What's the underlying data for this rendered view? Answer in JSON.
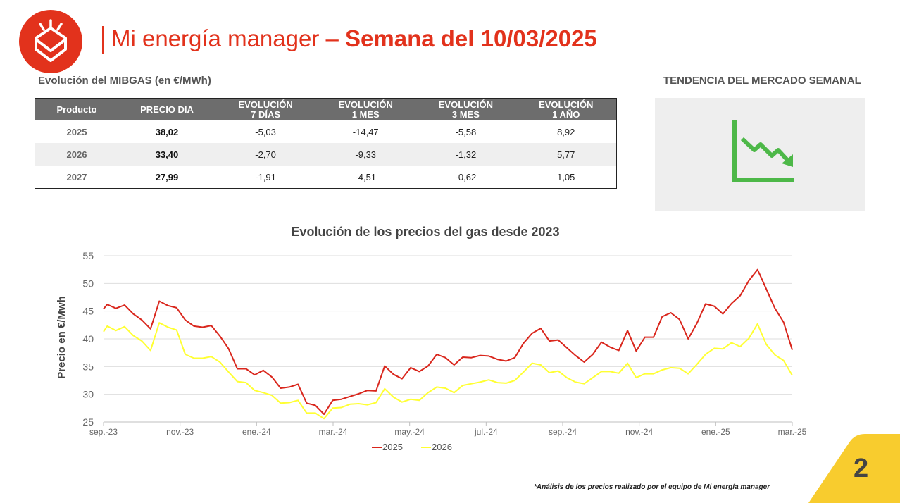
{
  "header": {
    "brand": "Mi energía manager",
    "dash": " – ",
    "week": "Semana del 10/03/2025"
  },
  "colors": {
    "accent": "#e2321c",
    "series2025": "#d9261c",
    "series2026": "#ffff33",
    "trend": "#4db848",
    "corner": "#f8cc2e"
  },
  "table": {
    "caption": "Evolución del MIBGAS (en €/MWh)",
    "headers": [
      {
        "l1": "Producto",
        "l2": ""
      },
      {
        "l1": "PRECIO DIA",
        "l2": ""
      },
      {
        "l1": "EVOLUCIÓN",
        "l2": "7 DÍAS"
      },
      {
        "l1": "EVOLUCIÓN",
        "l2": "1 MES"
      },
      {
        "l1": "EVOLUCIÓN",
        "l2": "3 MES"
      },
      {
        "l1": "EVOLUCIÓN",
        "l2": "1 AÑO"
      }
    ],
    "rows": [
      [
        "2025",
        "38,02",
        "-5,03",
        "-14,47",
        "-5,58",
        "8,92"
      ],
      [
        "2026",
        "33,40",
        "-2,70",
        "-9,33",
        "-1,32",
        "5,77"
      ],
      [
        "2027",
        "27,99",
        "-1,91",
        "-4,51",
        "-0,62",
        "1,05"
      ]
    ]
  },
  "trend": {
    "label": "TENDENCIA DEL MERCADO SEMANAL",
    "icon": "downtrend-chart-icon"
  },
  "chart_data": {
    "type": "line",
    "title": "Evolución de los precios del gas desde 2023",
    "ylabel": "Precio en €/Mwh",
    "xlabel": "",
    "ylim": [
      25,
      55
    ],
    "yticks": [
      25,
      30,
      35,
      40,
      45,
      50,
      55
    ],
    "x_tick_labels": [
      "sep.-23",
      "nov.-23",
      "ene.-24",
      "mar.-24",
      "may.-24",
      "jul.-24",
      "sep.-24",
      "nov.-24",
      "ene.-25",
      "mar.-25"
    ],
    "x_range": [
      "2023-09-01",
      "2025-03-10"
    ],
    "grid": true,
    "legend_position": "bottom",
    "series": [
      {
        "name": "2025",
        "color": "#d9261c",
        "points": [
          [
            "2023-09-01",
            45.4
          ],
          [
            "2023-09-04",
            46.2
          ],
          [
            "2023-09-11",
            45.5
          ],
          [
            "2023-09-18",
            46.1
          ],
          [
            "2023-09-25",
            44.5
          ],
          [
            "2023-10-02",
            43.4
          ],
          [
            "2023-10-09",
            41.8
          ],
          [
            "2023-10-16",
            46.8
          ],
          [
            "2023-10-23",
            46
          ],
          [
            "2023-10-30",
            45.6
          ],
          [
            "2023-11-06",
            43.4
          ],
          [
            "2023-11-13",
            42.3
          ],
          [
            "2023-11-20",
            42.1
          ],
          [
            "2023-11-27",
            42.4
          ],
          [
            "2023-12-04",
            40.5
          ],
          [
            "2023-12-11",
            38.2
          ],
          [
            "2023-12-18",
            34.6
          ],
          [
            "2023-12-25",
            34.6
          ],
          [
            "2024-01-01",
            33.5
          ],
          [
            "2024-01-08",
            34.3
          ],
          [
            "2024-01-15",
            33.1
          ],
          [
            "2024-01-22",
            31.1
          ],
          [
            "2024-01-29",
            31.3
          ],
          [
            "2024-02-05",
            31.8
          ],
          [
            "2024-02-12",
            28.4
          ],
          [
            "2024-02-19",
            28
          ],
          [
            "2024-02-26",
            26.4
          ],
          [
            "2024-03-04",
            28.9
          ],
          [
            "2024-03-11",
            29.1
          ],
          [
            "2024-03-18",
            29.6
          ],
          [
            "2024-03-25",
            30.1
          ],
          [
            "2024-04-01",
            30.7
          ],
          [
            "2024-04-08",
            30.6
          ],
          [
            "2024-04-15",
            35.1
          ],
          [
            "2024-04-22",
            33.6
          ],
          [
            "2024-04-29",
            32.8
          ],
          [
            "2024-05-06",
            34.8
          ],
          [
            "2024-05-13",
            34.1
          ],
          [
            "2024-05-20",
            35.1
          ],
          [
            "2024-05-27",
            37.2
          ],
          [
            "2024-06-03",
            36.6
          ],
          [
            "2024-06-10",
            35.3
          ],
          [
            "2024-06-17",
            36.7
          ],
          [
            "2024-06-24",
            36.6
          ],
          [
            "2024-07-01",
            37
          ],
          [
            "2024-07-08",
            36.9
          ],
          [
            "2024-07-15",
            36.3
          ],
          [
            "2024-07-22",
            36
          ],
          [
            "2024-07-29",
            36.6
          ],
          [
            "2024-08-05",
            39.2
          ],
          [
            "2024-08-12",
            41
          ],
          [
            "2024-08-19",
            41.9
          ],
          [
            "2024-08-26",
            39.6
          ],
          [
            "2024-09-02",
            39.8
          ],
          [
            "2024-09-09",
            38.4
          ],
          [
            "2024-09-16",
            37
          ],
          [
            "2024-09-23",
            35.8
          ],
          [
            "2024-09-30",
            37.2
          ],
          [
            "2024-10-07",
            39.4
          ],
          [
            "2024-10-14",
            38.5
          ],
          [
            "2024-10-21",
            37.9
          ],
          [
            "2024-10-28",
            41.5
          ],
          [
            "2024-11-04",
            37.8
          ],
          [
            "2024-11-11",
            40.3
          ],
          [
            "2024-11-18",
            40.3
          ],
          [
            "2024-11-25",
            44
          ],
          [
            "2024-12-02",
            44.7
          ],
          [
            "2024-12-09",
            43.5
          ],
          [
            "2024-12-16",
            40
          ],
          [
            "2024-12-23",
            42.8
          ],
          [
            "2024-12-30",
            46.3
          ],
          [
            "2025-01-06",
            45.9
          ],
          [
            "2025-01-13",
            44.5
          ],
          [
            "2025-01-20",
            46.4
          ],
          [
            "2025-01-27",
            47.8
          ],
          [
            "2025-02-03",
            50.5
          ],
          [
            "2025-02-10",
            52.5
          ],
          [
            "2025-02-17",
            49
          ],
          [
            "2025-02-24",
            45.5
          ],
          [
            "2025-03-03",
            43
          ],
          [
            "2025-03-10",
            38
          ]
        ]
      },
      {
        "name": "2026",
        "color": "#ffff33",
        "points": [
          [
            "2023-09-01",
            41.3
          ],
          [
            "2023-09-04",
            42.3
          ],
          [
            "2023-09-11",
            41.5
          ],
          [
            "2023-09-18",
            42.2
          ],
          [
            "2023-09-25",
            40.6
          ],
          [
            "2023-10-02",
            39.6
          ],
          [
            "2023-10-09",
            37.9
          ],
          [
            "2023-10-16",
            42.9
          ],
          [
            "2023-10-23",
            42.1
          ],
          [
            "2023-10-30",
            41.6
          ],
          [
            "2023-11-06",
            37.2
          ],
          [
            "2023-11-13",
            36.5
          ],
          [
            "2023-11-20",
            36.5
          ],
          [
            "2023-11-27",
            36.8
          ],
          [
            "2023-12-04",
            35.8
          ],
          [
            "2023-12-11",
            34
          ],
          [
            "2023-12-18",
            32.3
          ],
          [
            "2023-12-25",
            32.1
          ],
          [
            "2024-01-01",
            30.7
          ],
          [
            "2024-01-08",
            30.3
          ],
          [
            "2024-01-15",
            29.8
          ],
          [
            "2024-01-22",
            28.4
          ],
          [
            "2024-01-29",
            28.5
          ],
          [
            "2024-02-05",
            28.9
          ],
          [
            "2024-02-12",
            26.6
          ],
          [
            "2024-02-19",
            26.6
          ],
          [
            "2024-02-26",
            25.6
          ],
          [
            "2024-03-04",
            27.5
          ],
          [
            "2024-03-11",
            27.6
          ],
          [
            "2024-03-18",
            28.2
          ],
          [
            "2024-03-25",
            28.3
          ],
          [
            "2024-04-01",
            28.1
          ],
          [
            "2024-04-08",
            28.5
          ],
          [
            "2024-04-15",
            31
          ],
          [
            "2024-04-22",
            29.5
          ],
          [
            "2024-04-29",
            28.6
          ],
          [
            "2024-05-06",
            29.1
          ],
          [
            "2024-05-13",
            28.9
          ],
          [
            "2024-05-20",
            30.3
          ],
          [
            "2024-05-27",
            31.3
          ],
          [
            "2024-06-03",
            31.1
          ],
          [
            "2024-06-10",
            30.3
          ],
          [
            "2024-06-17",
            31.6
          ],
          [
            "2024-06-24",
            31.9
          ],
          [
            "2024-07-01",
            32.2
          ],
          [
            "2024-07-08",
            32.6
          ],
          [
            "2024-07-15",
            32.1
          ],
          [
            "2024-07-22",
            32
          ],
          [
            "2024-07-29",
            32.5
          ],
          [
            "2024-08-05",
            34
          ],
          [
            "2024-08-12",
            35.6
          ],
          [
            "2024-08-19",
            35.3
          ],
          [
            "2024-08-26",
            33.9
          ],
          [
            "2024-09-02",
            34.2
          ],
          [
            "2024-09-09",
            33
          ],
          [
            "2024-09-16",
            32.2
          ],
          [
            "2024-09-23",
            31.9
          ],
          [
            "2024-09-30",
            33
          ],
          [
            "2024-10-07",
            34.1
          ],
          [
            "2024-10-14",
            34.1
          ],
          [
            "2024-10-21",
            33.8
          ],
          [
            "2024-10-28",
            35.6
          ],
          [
            "2024-11-04",
            33
          ],
          [
            "2024-11-11",
            33.7
          ],
          [
            "2024-11-18",
            33.7
          ],
          [
            "2024-11-25",
            34.4
          ],
          [
            "2024-12-02",
            34.8
          ],
          [
            "2024-12-09",
            34.7
          ],
          [
            "2024-12-16",
            33.7
          ],
          [
            "2024-12-23",
            35.4
          ],
          [
            "2024-12-30",
            37.2
          ],
          [
            "2025-01-06",
            38.3
          ],
          [
            "2025-01-13",
            38.2
          ],
          [
            "2025-01-20",
            39.3
          ],
          [
            "2025-01-27",
            38.6
          ],
          [
            "2025-02-03",
            40.1
          ],
          [
            "2025-02-10",
            42.7
          ],
          [
            "2025-02-17",
            39
          ],
          [
            "2025-02-24",
            37.1
          ],
          [
            "2025-03-03",
            36.1
          ],
          [
            "2025-03-10",
            33.4
          ]
        ]
      }
    ]
  },
  "footer": {
    "page_number": "2",
    "note": "*Análisis de los precios realizado por el equipo de Mi energía manager"
  }
}
